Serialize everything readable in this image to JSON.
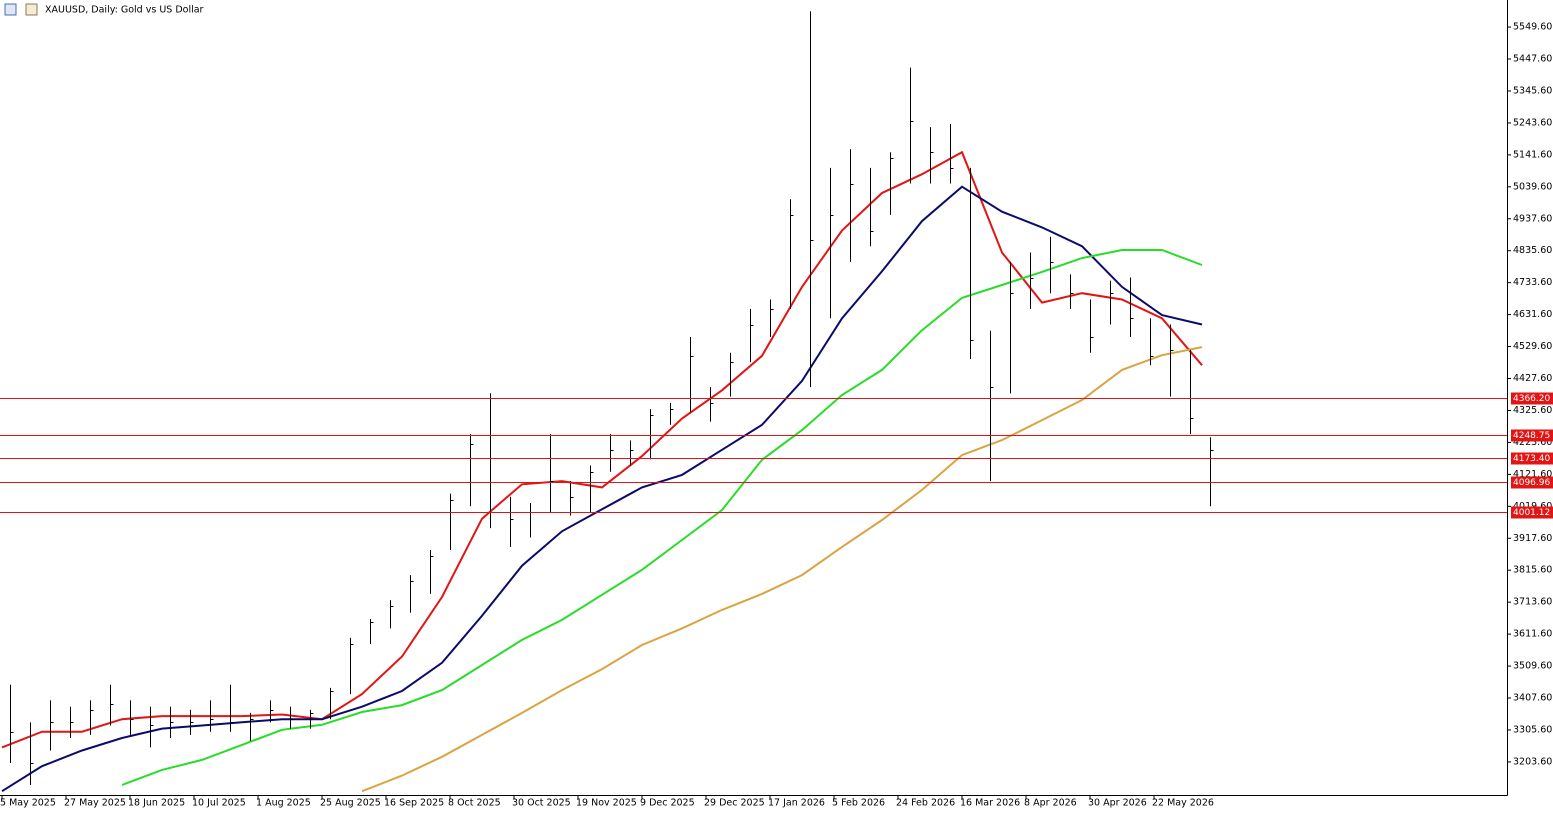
{
  "chart_data": {
    "type": "ohlc",
    "title": "XAUUSD, Daily:  Gold vs US Dollar",
    "color": "#000000",
    "x": [
      2,
      7,
      12,
      17,
      22,
      27,
      32,
      37,
      42,
      47,
      52,
      57,
      62,
      67,
      72,
      77,
      82,
      87,
      92,
      97,
      102,
      107,
      112,
      117,
      122,
      127,
      132,
      137,
      142,
      147,
      152,
      157,
      162,
      167,
      172,
      177,
      182,
      187,
      192,
      197,
      202,
      207,
      212,
      217,
      222,
      227,
      232,
      237,
      242,
      247,
      252,
      257,
      262,
      267,
      272,
      277,
      282,
      287,
      292,
      297,
      302
    ],
    "high": [
      3450,
      3330,
      3400,
      3380,
      3400,
      3450,
      3400,
      3380,
      3380,
      3370,
      3400,
      3450,
      3360,
      3400,
      3380,
      3370,
      3440,
      3600,
      3660,
      3720,
      3800,
      3880,
      4060,
      4250,
      4380,
      4050,
      4030,
      4250,
      4100,
      4150,
      4250,
      4230,
      4330,
      4350,
      4560,
      4400,
      4510,
      4650,
      4680,
      5000,
      5600,
      5100,
      5160,
      5100,
      5150,
      5420,
      5230,
      5240,
      5100,
      4580,
      4800,
      4830,
      4880,
      4760,
      4680,
      4740,
      4750,
      4620,
      4600,
      4520,
      4240
    ],
    "low": [
      3200,
      3130,
      3240,
      3280,
      3290,
      3320,
      3290,
      3250,
      3280,
      3290,
      3300,
      3300,
      3270,
      3330,
      3310,
      3310,
      3340,
      3420,
      3580,
      3630,
      3680,
      3740,
      3880,
      4020,
      3950,
      3890,
      3920,
      4000,
      3990,
      4000,
      4130,
      4150,
      4170,
      4280,
      4320,
      4290,
      4370,
      4480,
      4560,
      4650,
      4400,
      4620,
      4800,
      4850,
      4950,
      5050,
      5050,
      5050,
      4490,
      4100,
      4380,
      4650,
      4700,
      4650,
      4510,
      4600,
      4560,
      4470,
      4370,
      4250,
      4020
    ],
    "close": [
      3300,
      3200,
      3330,
      3330,
      3370,
      3390,
      3340,
      3320,
      3330,
      3330,
      3340,
      3330,
      3340,
      3370,
      3340,
      3360,
      3430,
      3580,
      3650,
      3700,
      3780,
      3860,
      4040,
      4220,
      4000,
      3980,
      4000,
      4100,
      4050,
      4130,
      4200,
      4200,
      4310,
      4330,
      4500,
      4350,
      4480,
      4600,
      4650,
      4950,
      4870,
      4950,
      5050,
      4900,
      5130,
      5250,
      5150,
      5100,
      4550,
      4400,
      4700,
      4750,
      4800,
      4700,
      4560,
      4700,
      4620,
      4500,
      4520,
      4300,
      4200
    ],
    "ma_x": [
      0,
      10,
      20,
      30,
      40,
      50,
      60,
      70,
      80,
      90,
      100,
      110,
      120,
      130,
      140,
      150,
      160,
      170,
      180,
      190,
      200,
      210,
      220,
      230,
      240,
      250,
      260,
      270,
      280,
      290,
      300
    ],
    "moving_averages": [
      {
        "color": "#e31414",
        "values": [
          3250,
          3300,
          3300,
          3340,
          3350,
          3350,
          3350,
          3355,
          3340,
          3420,
          3540,
          3730,
          3980,
          4090,
          4100,
          4080,
          4180,
          4300,
          4390,
          4500,
          4720,
          4900,
          5020,
          5080,
          5150,
          4830,
          4670,
          4700,
          4680,
          4620,
          4470
        ]
      },
      {
        "color": "#0b0b6b",
        "values": [
          3110,
          3190,
          3240,
          3280,
          3310,
          3320,
          3330,
          3340,
          3340,
          3380,
          3430,
          3520,
          3670,
          3830,
          3940,
          4010,
          4080,
          4120,
          4200,
          4280,
          4420,
          4620,
          4770,
          4930,
          5040,
          4960,
          4910,
          4850,
          4720,
          4630,
          4600
        ]
      },
      {
        "color": "#28dc28",
        "values": [
          null,
          null,
          null,
          3130,
          3178,
          3210,
          3258,
          3306,
          3322,
          3363,
          3385,
          3433,
          3513,
          3593,
          3657,
          3737,
          3817,
          3912,
          4008,
          4168,
          4263,
          4375,
          4455,
          4582,
          4685,
          4726,
          4768,
          4812,
          4838,
          4838,
          4790
        ]
      },
      {
        "color": "#d9a441",
        "values": [
          null,
          null,
          null,
          null,
          null,
          null,
          null,
          null,
          null,
          3110,
          3160,
          3220,
          3290,
          3360,
          3433,
          3500,
          3577,
          3630,
          3689,
          3740,
          3800,
          3890,
          3976,
          4072,
          4183,
          4231,
          4295,
          4359,
          4455,
          4502,
          4528
        ]
      }
    ],
    "level_color": "#e31414",
    "levels": [
      {
        "value": 4366.2,
        "label": "4366.20"
      },
      {
        "value": 4248.75,
        "label": "4248.75"
      },
      {
        "value": 4173.4,
        "label": "4173.40"
      },
      {
        "value": 4096.96,
        "label": "4096.96"
      },
      {
        "value": 4001.12,
        "label": "4001.12"
      }
    ],
    "xlim": [
      -0.5,
      376.25
    ],
    "xticks": [
      {
        "value": 0,
        "label": "5 May 2025"
      },
      {
        "value": 16,
        "label": "27 May 2025"
      },
      {
        "value": 32,
        "label": "18 Jun 2025"
      },
      {
        "value": 48,
        "label": "10 Jul 2025"
      },
      {
        "value": 64,
        "label": "1 Aug 2025"
      },
      {
        "value": 80,
        "label": "25 Aug 2025"
      },
      {
        "value": 96,
        "label": "16 Sep 2025"
      },
      {
        "value": 112,
        "label": "8 Oct 2025"
      },
      {
        "value": 128,
        "label": "30 Oct 2025"
      },
      {
        "value": 144,
        "label": "19 Nov 2025"
      },
      {
        "value": 160,
        "label": "9 Dec 2025"
      },
      {
        "value": 176,
        "label": "29 Dec 2025"
      },
      {
        "value": 192,
        "label": "17 Jan 2026"
      },
      {
        "value": 208,
        "label": "5 Feb 2026"
      },
      {
        "value": 224,
        "label": "24 Feb 2026"
      },
      {
        "value": 240,
        "label": "16 Mar 2026"
      },
      {
        "value": 256,
        "label": "8 Apr 2026"
      },
      {
        "value": 272,
        "label": "30 Apr 2026"
      },
      {
        "value": 288,
        "label": "22 May 2026"
      }
    ],
    "ylim": [
      3098,
      5636
    ],
    "yticks": [
      {
        "value": 3203.6,
        "label": "3203.60"
      },
      {
        "value": 3305.6,
        "label": "3305.60"
      },
      {
        "value": 3407.6,
        "label": "3407.60"
      },
      {
        "value": 3509.6,
        "label": "3509.60"
      },
      {
        "value": 3611.6,
        "label": "3611.60"
      },
      {
        "value": 3713.6,
        "label": "3713.60"
      },
      {
        "value": 3815.6,
        "label": "3815.60"
      },
      {
        "value": 3917.6,
        "label": "3917.60"
      },
      {
        "value": 4019.6,
        "label": "4019.60"
      },
      {
        "value": 4121.6,
        "label": "4121.60"
      },
      {
        "value": 4223.6,
        "label": "4223.60"
      },
      {
        "value": 4325.6,
        "label": "4325.60"
      },
      {
        "value": 4427.6,
        "label": "4427.60"
      },
      {
        "value": 4529.6,
        "label": "4529.60"
      },
      {
        "value": 4631.6,
        "label": "4631.60"
      },
      {
        "value": 4733.6,
        "label": "4733.60"
      },
      {
        "value": 4835.6,
        "label": "4835.60"
      },
      {
        "value": 4937.6,
        "label": "4937.60"
      },
      {
        "value": 5039.6,
        "label": "5039.60"
      },
      {
        "value": 5141.6,
        "label": "5141.60"
      },
      {
        "value": 5243.6,
        "label": "5243.60"
      },
      {
        "value": 5345.6,
        "label": "5345.60"
      },
      {
        "value": 5447.6,
        "label": "5447.60"
      },
      {
        "value": 5549.6,
        "label": "5549.60"
      }
    ]
  }
}
